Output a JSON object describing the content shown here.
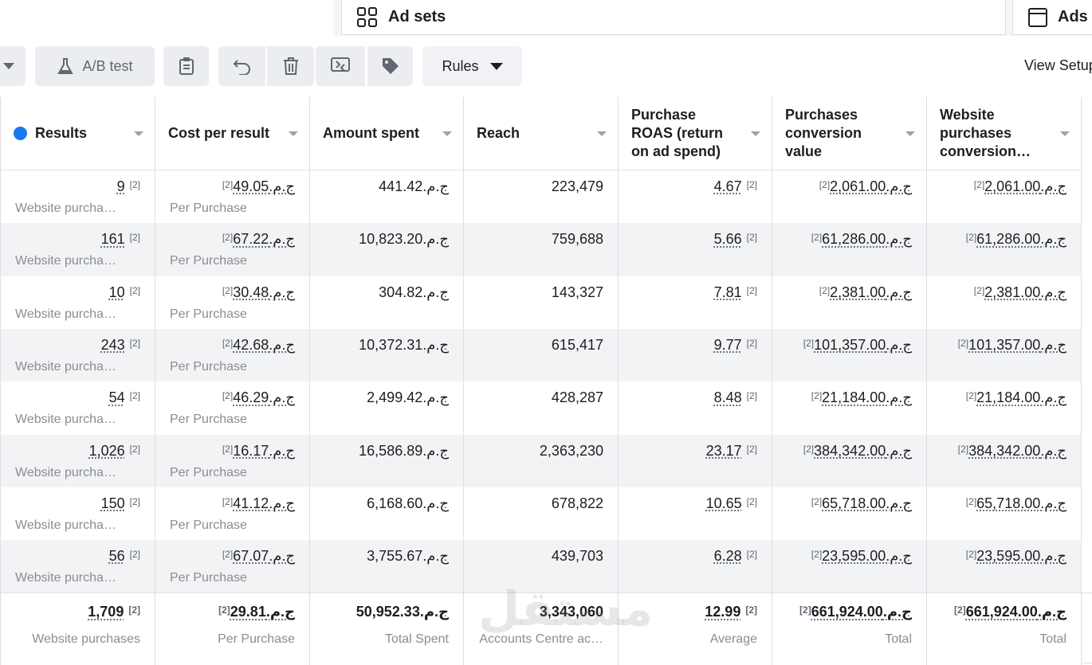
{
  "tabs": [
    "Ad sets",
    "Ads"
  ],
  "toolbar": {
    "ab_test": "A/B test",
    "rules": "Rules",
    "view_setup": "View Setup"
  },
  "columns": [
    "Results",
    "Cost per result",
    "Amount spent",
    "Reach",
    "Purchase ROAS (return on ad spend)",
    "Purchases conversion value",
    "Website purchases conversion…"
  ],
  "rows": [
    [
      {
        "text": "9",
        "note": "[2]",
        "sub": "Website purcha…"
      },
      {
        "text": "ج.م.49.05",
        "note": "[2]",
        "sub": "Per Purchase"
      },
      {
        "text": "ج.م.441.42"
      },
      {
        "text": "223,479"
      },
      {
        "text": "4.67",
        "note": "[2]"
      },
      {
        "text": "ج.م.2,061.00",
        "note": "[2]"
      },
      {
        "text": "ج.م.2,061.00",
        "note": "[2]"
      }
    ],
    [
      {
        "text": "161",
        "note": "[2]",
        "sub": "Website purcha…"
      },
      {
        "text": "ج.م.67.22",
        "note": "[2]",
        "sub": "Per Purchase"
      },
      {
        "text": "ج.م.10,823.20"
      },
      {
        "text": "759,688"
      },
      {
        "text": "5.66",
        "note": "[2]"
      },
      {
        "text": "ج.م.61,286.00",
        "note": "[2]"
      },
      {
        "text": "ج.م.61,286.00",
        "note": "[2]"
      }
    ],
    [
      {
        "text": "10",
        "note": "[2]",
        "sub": "Website purcha…"
      },
      {
        "text": "ج.م.30.48",
        "note": "[2]",
        "sub": "Per Purchase"
      },
      {
        "text": "ج.م.304.82"
      },
      {
        "text": "143,327"
      },
      {
        "text": "7.81",
        "note": "[2]"
      },
      {
        "text": "ج.م.2,381.00",
        "note": "[2]"
      },
      {
        "text": "ج.م.2,381.00",
        "note": "[2]"
      }
    ],
    [
      {
        "text": "243",
        "note": "[2]",
        "sub": "Website purcha…"
      },
      {
        "text": "ج.م.42.68",
        "note": "[2]",
        "sub": "Per Purchase"
      },
      {
        "text": "ج.م.10,372.31"
      },
      {
        "text": "615,417"
      },
      {
        "text": "9.77",
        "note": "[2]"
      },
      {
        "text": "ج.م.101,357.00",
        "note": "[2]"
      },
      {
        "text": "ج.م.101,357.00",
        "note": "[2]"
      }
    ],
    [
      {
        "text": "54",
        "note": "[2]",
        "sub": "Website purcha…"
      },
      {
        "text": "ج.م.46.29",
        "note": "[2]",
        "sub": "Per Purchase"
      },
      {
        "text": "ج.م.2,499.42"
      },
      {
        "text": "428,287"
      },
      {
        "text": "8.48",
        "note": "[2]"
      },
      {
        "text": "ج.م.21,184.00",
        "note": "[2]"
      },
      {
        "text": "ج.م.21,184.00",
        "note": "[2]"
      }
    ],
    [
      {
        "text": "1,026",
        "note": "[2]",
        "sub": "Website purcha…"
      },
      {
        "text": "ج.م.16.17",
        "note": "[2]",
        "sub": "Per Purchase"
      },
      {
        "text": "ج.م.16,586.89"
      },
      {
        "text": "2,363,230"
      },
      {
        "text": "23.17",
        "note": "[2]"
      },
      {
        "text": "ج.م.384,342.00",
        "note": "[2]"
      },
      {
        "text": "ج.م.384,342.00",
        "note": "[2]"
      }
    ],
    [
      {
        "text": "150",
        "note": "[2]",
        "sub": "Website purcha…"
      },
      {
        "text": "ج.م.41.12",
        "note": "[2]",
        "sub": "Per Purchase"
      },
      {
        "text": "ج.م.6,168.60"
      },
      {
        "text": "678,822"
      },
      {
        "text": "10.65",
        "note": "[2]"
      },
      {
        "text": "ج.م.65,718.00",
        "note": "[2]"
      },
      {
        "text": "ج.م.65,718.00",
        "note": "[2]"
      }
    ],
    [
      {
        "text": "56",
        "note": "[2]",
        "sub": "Website purcha…"
      },
      {
        "text": "ج.م.67.07",
        "note": "[2]",
        "sub": "Per Purchase"
      },
      {
        "text": "ج.م.3,755.67"
      },
      {
        "text": "439,703"
      },
      {
        "text": "6.28",
        "note": "[2]"
      },
      {
        "text": "ج.م.23,595.00",
        "note": "[2]"
      },
      {
        "text": "ج.م.23,595.00",
        "note": "[2]"
      }
    ]
  ],
  "totals": [
    {
      "text": "1,709",
      "note": "[2]",
      "sub": "Website purchases"
    },
    {
      "text": "ج.م.29.81",
      "note": "[2]",
      "sub": "Per Purchase"
    },
    {
      "text": "ج.م.50,952.33",
      "sub": "Total Spent"
    },
    {
      "text": "3,343,060",
      "sub": "Accounts Centre ac…"
    },
    {
      "text": "12.99",
      "note": "[2]",
      "sub": "Average"
    },
    {
      "text": "ج.م.661,924.00",
      "note": "[2]",
      "sub": "Total"
    },
    {
      "text": "ج.م.661,924.00",
      "note": "[2]",
      "sub": "Total"
    }
  ],
  "watermark": "مستقل"
}
